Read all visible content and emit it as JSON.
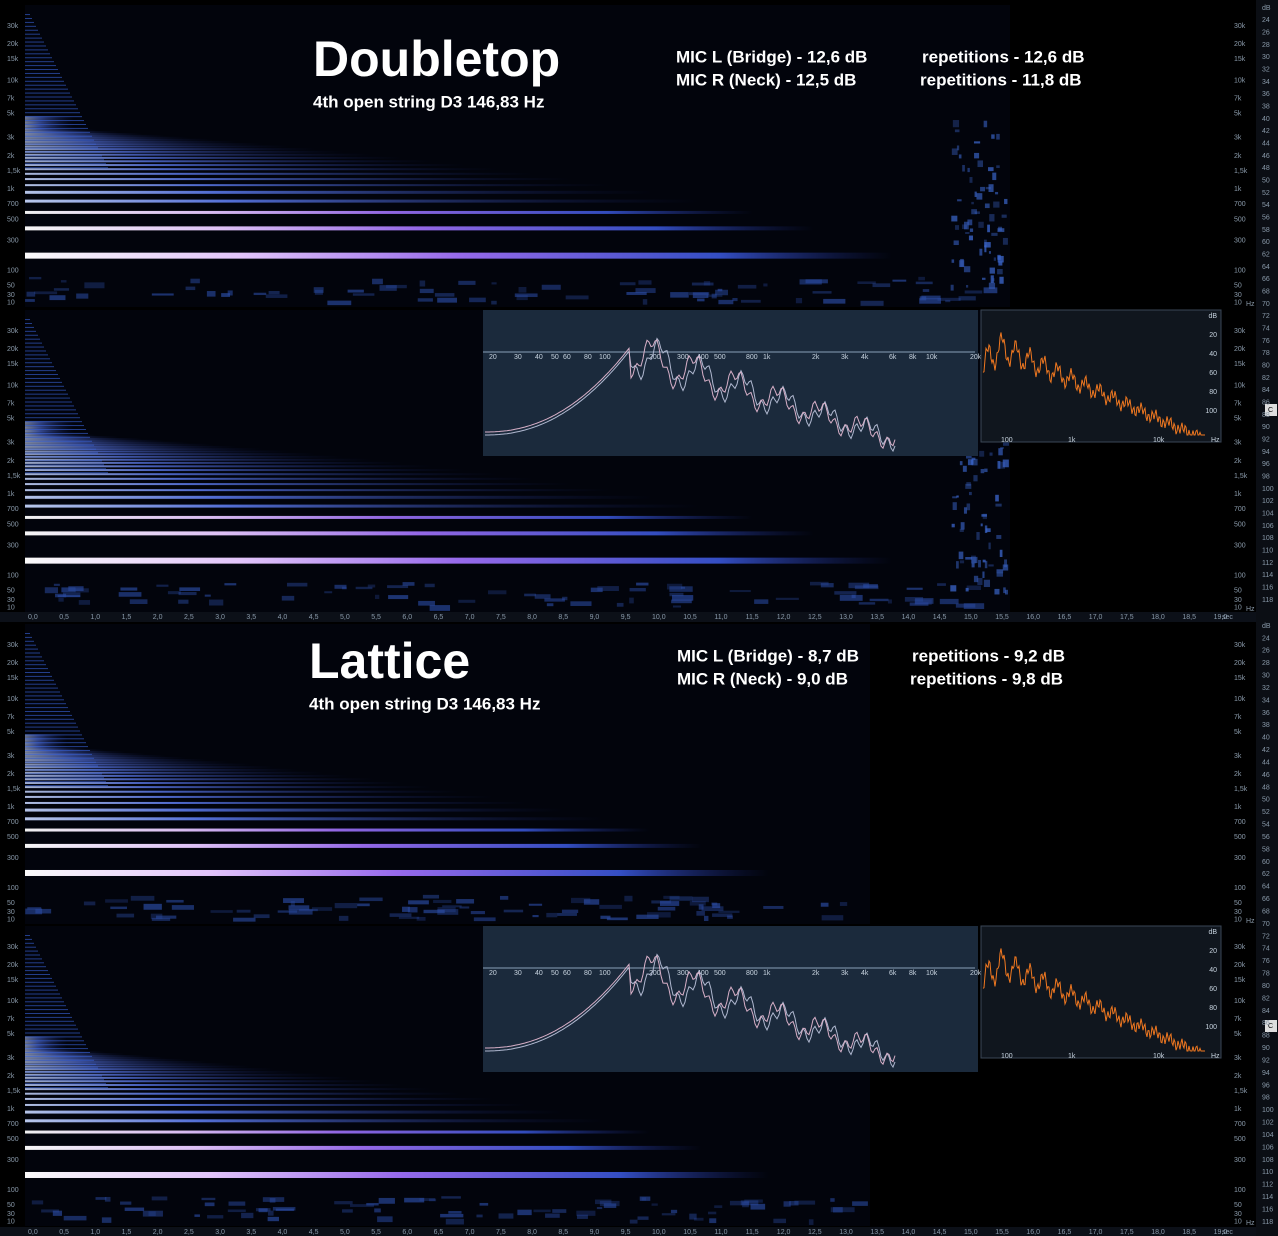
{
  "panels": [
    {
      "title": "Doubletop",
      "subtitle": "4th open string D3 146,83 Hz",
      "mic_lines": [
        [
          "MIC L (Bridge) - 12,6 dB",
          "repetitions - 12,6 dB"
        ],
        [
          "MIC R (Neck) - 12,5 dB",
          "repetitions - 11,8 dB"
        ]
      ]
    },
    {
      "title": "Lattice",
      "subtitle": "4th open string D3 146,83 Hz",
      "mic_lines": [
        [
          "MIC L (Bridge) - 8,7 dB",
          "repetitions - 9,2 dB"
        ],
        [
          "MIC R (Neck) - 9,0 dB",
          "repetitions - 9,8 dB"
        ]
      ]
    }
  ],
  "freq_labels": [
    "30k",
    "20k",
    "15k",
    "10k",
    "7k",
    "5k",
    "3k",
    "2k",
    "1,5k",
    "1k",
    "700",
    "500",
    "300",
    "100",
    "50",
    "30",
    "10"
  ],
  "freq_unit": "Hz",
  "time_labels": [
    "0,0",
    "0,5",
    "1,0",
    "1,5",
    "2,0",
    "2,5",
    "3,0",
    "3,5",
    "4,0",
    "4,5",
    "5,0",
    "5,5",
    "6,0",
    "6,5",
    "7,0",
    "7,5",
    "8,0",
    "8,5",
    "9,0",
    "9,5",
    "10,0",
    "10,5",
    "11,0",
    "11,5",
    "12,0",
    "12,5",
    "13,0",
    "13,5",
    "14,0",
    "14,5",
    "15,0",
    "15,5",
    "16,0",
    "16,5",
    "17,0",
    "17,5",
    "18,0",
    "18,5",
    "19,0"
  ],
  "time_unit": "sec",
  "spectrum_labels": [
    "20",
    "30",
    "40",
    "50",
    "60",
    "80",
    "100",
    "200",
    "300",
    "400",
    "500",
    "800",
    "1k",
    "2k",
    "3k",
    "4k",
    "6k",
    "8k",
    "10k",
    "20k"
  ],
  "level_labels": [
    "dB",
    "20",
    "40",
    "60",
    "80",
    "100"
  ],
  "mini_x_labels": [
    "100",
    "1k",
    "10k",
    "Hz"
  ],
  "db_scale": [
    "dB",
    "24",
    "26",
    "28",
    "30",
    "32",
    "34",
    "36",
    "38",
    "40",
    "42",
    "44",
    "46",
    "48",
    "50",
    "52",
    "54",
    "56",
    "58",
    "60",
    "62",
    "64",
    "66",
    "68",
    "70",
    "72",
    "74",
    "76",
    "78",
    "80",
    "82",
    "84",
    "86",
    "88",
    "90",
    "92",
    "94",
    "96",
    "98",
    "100",
    "102",
    "104",
    "106",
    "108",
    "110",
    "112",
    "114",
    "116",
    "118"
  ],
  "c_button": "C"
}
